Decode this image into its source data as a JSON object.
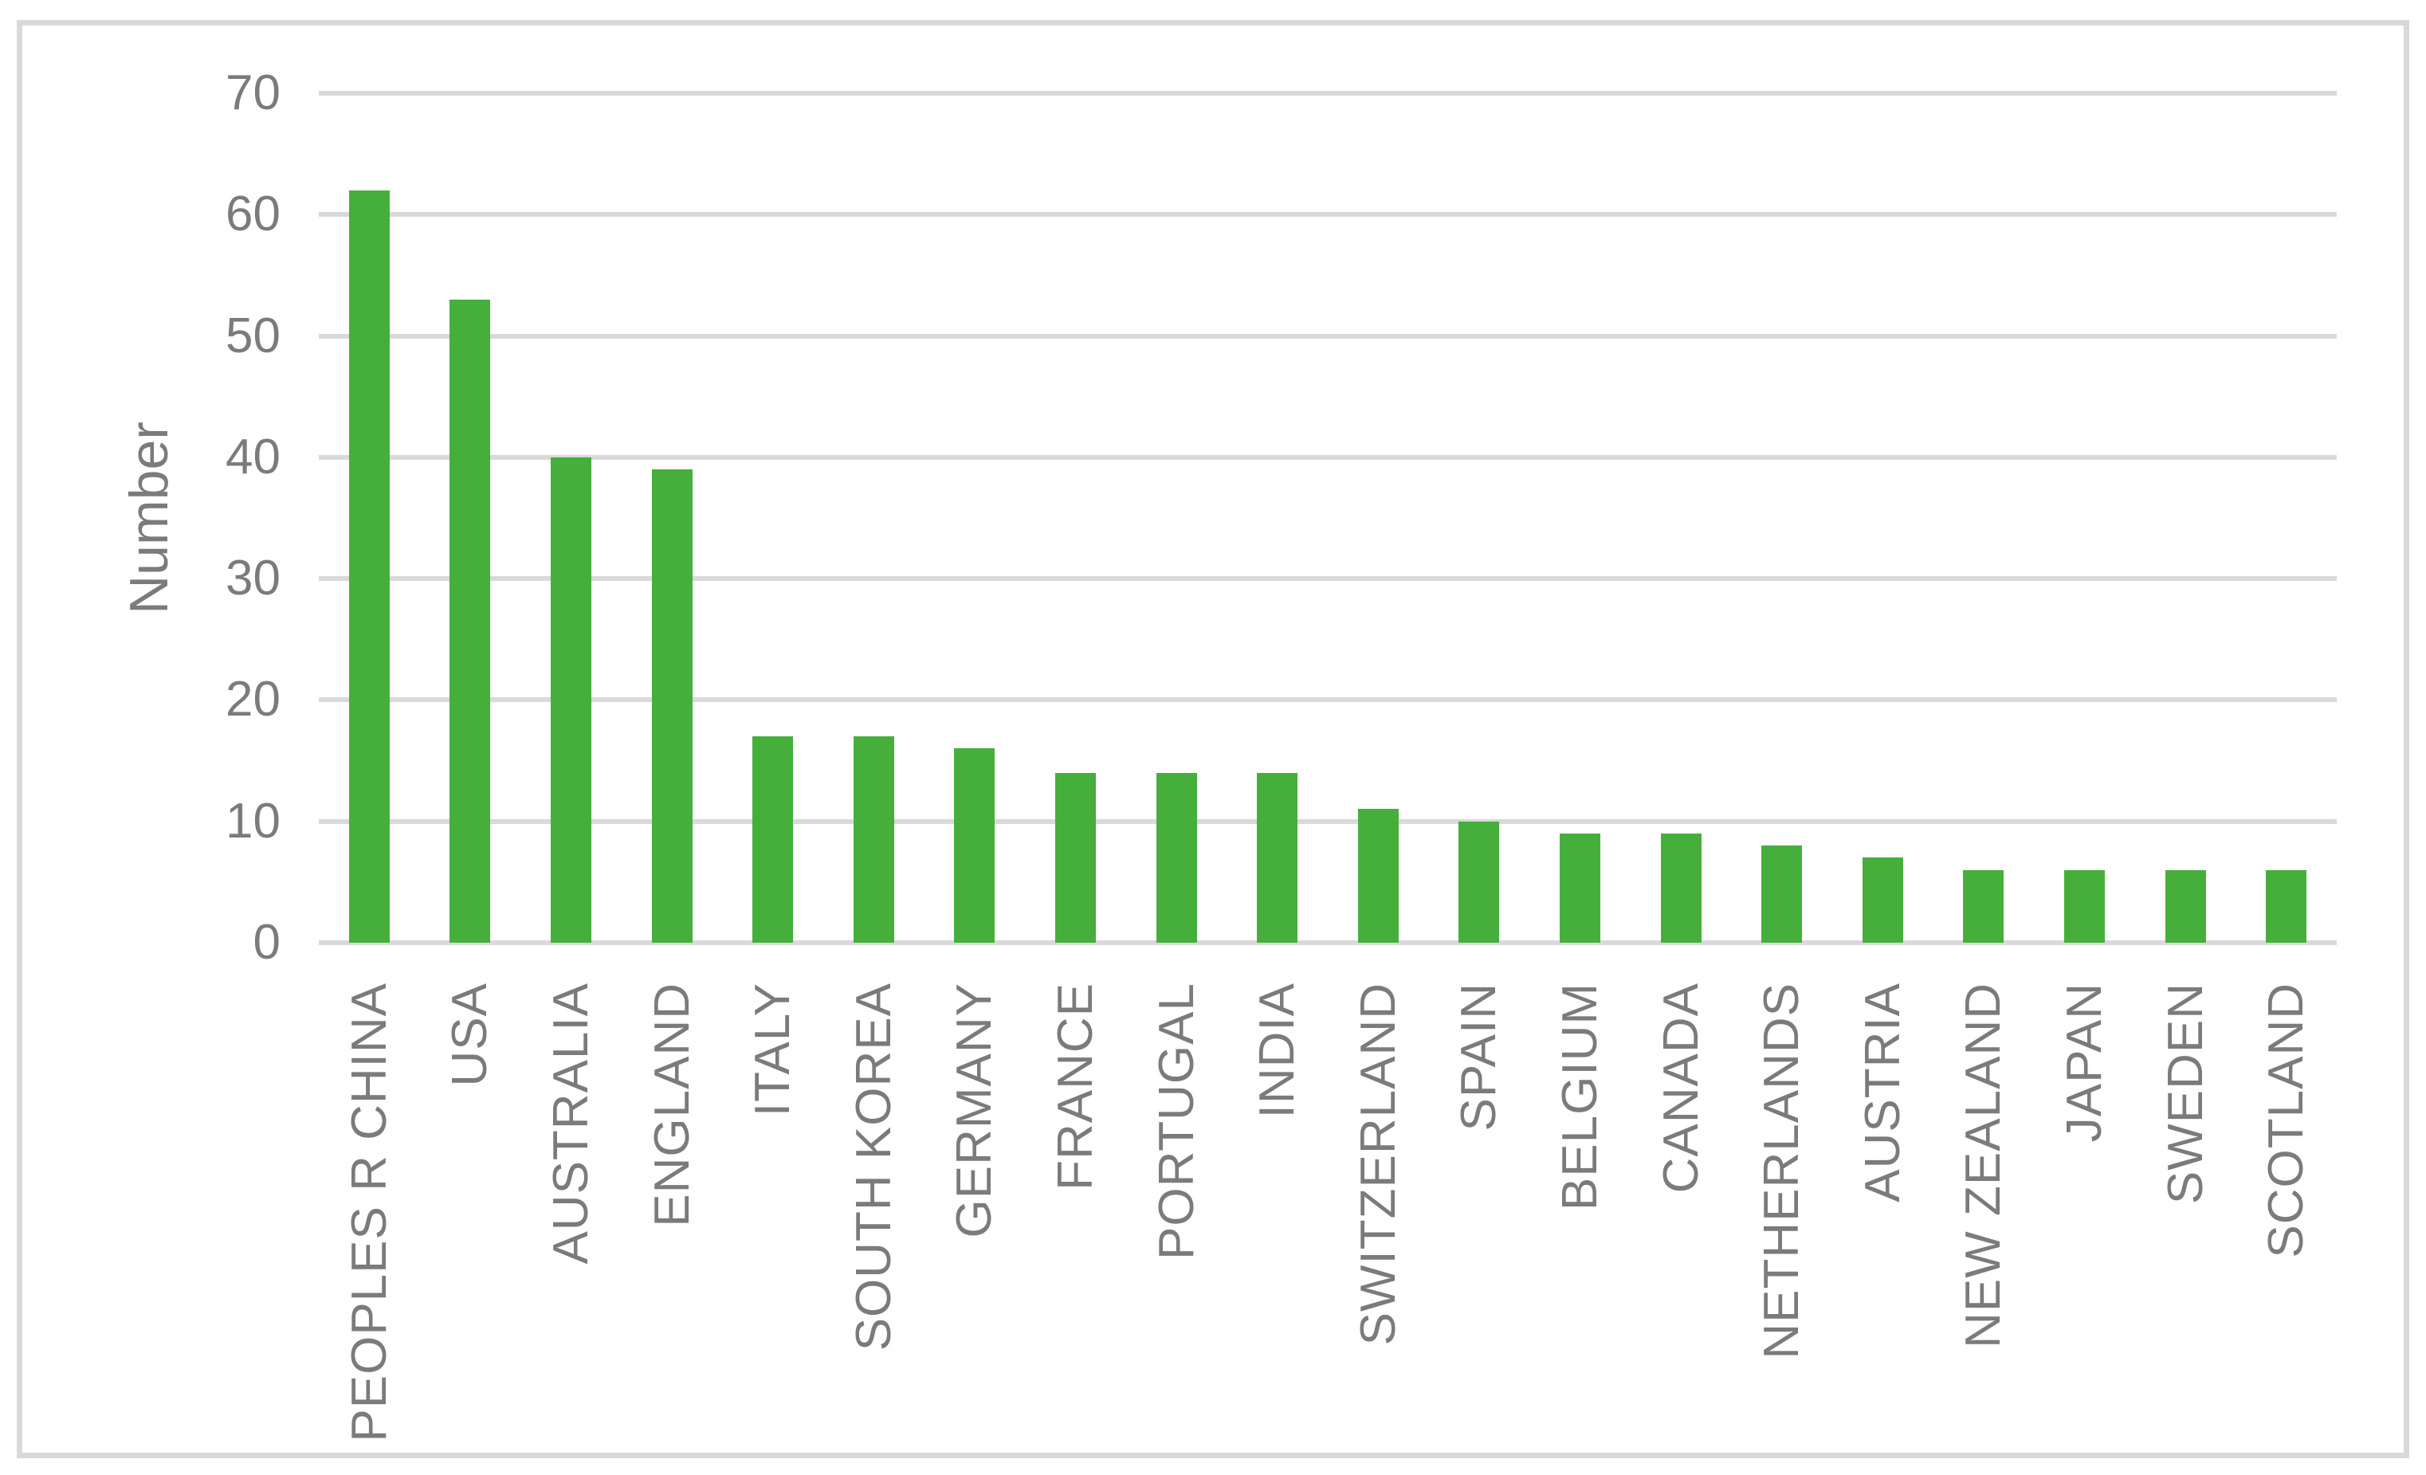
{
  "chart_data": {
    "type": "bar",
    "title": "",
    "xlabel": "",
    "ylabel": "Number",
    "categories": [
      "PEOPLES R CHINA",
      "USA",
      "AUSTRALIA",
      "ENGLAND",
      "ITALY",
      "SOUTH KOREA",
      "GERMANY",
      "FRANCE",
      "PORTUGAL",
      "INDIA",
      "SWITZERLAND",
      "SPAIN",
      "BELGIUM",
      "CANADA",
      "NETHERLANDS",
      "AUSTRIA",
      "NEW ZEALAND",
      "JAPAN",
      "SWEDEN",
      "SCOTLAND"
    ],
    "values": [
      62,
      53,
      40,
      39,
      17,
      17,
      16,
      14,
      14,
      14,
      11,
      10,
      9,
      9,
      8,
      7,
      6,
      6,
      6,
      6
    ],
    "ylim": [
      0,
      70
    ],
    "yticks": [
      0,
      10,
      20,
      30,
      40,
      50,
      60,
      70
    ],
    "grid": "horizontal",
    "legend": "none",
    "x_label_rotation": "vertical-bottom-to-top"
  },
  "colors": {
    "bar": "#46AF3C",
    "gridline": "#D9D9D9",
    "border": "#D9D9D9",
    "text": "#7B7B7B",
    "background": "#FFFFFF"
  }
}
